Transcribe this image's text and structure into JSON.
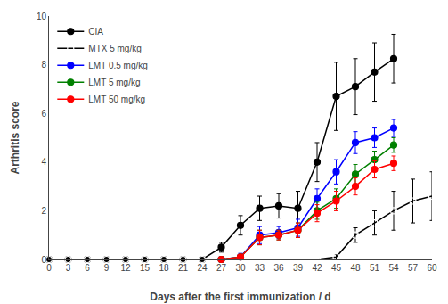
{
  "chart_data": {
    "type": "line",
    "xlabel": "Days after the first immunization / d",
    "ylabel": "Arthritis score",
    "xlim": [
      0,
      60
    ],
    "xticks": [
      0,
      3,
      6,
      9,
      12,
      15,
      18,
      21,
      24,
      27,
      30,
      33,
      36,
      39,
      42,
      45,
      48,
      51,
      54,
      57,
      60
    ],
    "ylim": [
      0,
      10
    ],
    "yticks": [
      0,
      2,
      4,
      6,
      8,
      10
    ],
    "grid": false,
    "legend": "upper left",
    "series": [
      {
        "name": "CIA",
        "color": "#000000",
        "marker": "circle",
        "line_style": "solid",
        "x": [
          0,
          3,
          6,
          9,
          12,
          15,
          18,
          21,
          24,
          27,
          30,
          33,
          36,
          39,
          42,
          45,
          48,
          51,
          54
        ],
        "values": [
          0,
          0,
          0,
          0,
          0,
          0,
          0,
          0,
          0,
          0.5,
          1.4,
          2.1,
          2.2,
          2.1,
          4.0,
          6.7,
          7.1,
          7.7,
          8.25
        ],
        "errors": [
          0,
          0,
          0,
          0,
          0,
          0,
          0,
          0,
          0,
          0.2,
          0.4,
          0.5,
          0.5,
          0.7,
          0.8,
          1.4,
          1.15,
          1.2,
          1.0
        ]
      },
      {
        "name": "MTX 5 mg/kg",
        "color": "#000000",
        "marker": "circle-open",
        "line_style": "solid",
        "x": [
          0,
          3,
          6,
          9,
          12,
          15,
          18,
          21,
          24,
          27,
          30,
          33,
          36,
          39,
          42,
          45,
          48,
          51,
          54,
          57,
          60
        ],
        "values": [
          0,
          0,
          0,
          0,
          0,
          0,
          0,
          0,
          0,
          0,
          0,
          0,
          0,
          0,
          0,
          0.1,
          1.0,
          1.5,
          2.0,
          2.4,
          2.6
        ],
        "errors": [
          0,
          0,
          0,
          0,
          0,
          0,
          0,
          0,
          0,
          0,
          0,
          0,
          0,
          0,
          0,
          0.1,
          0.3,
          0.5,
          0.8,
          0.9,
          1.0
        ]
      },
      {
        "name": "LMT 0.5 mg/kg",
        "color": "#0000FF",
        "marker": "circle",
        "line_style": "solid",
        "x": [
          27,
          30,
          33,
          36,
          39,
          42,
          45,
          48,
          51,
          54
        ],
        "values": [
          0,
          0.1,
          1.0,
          1.1,
          1.3,
          2.5,
          3.6,
          4.8,
          5.0,
          5.4
        ],
        "errors": [
          0,
          0.15,
          0.35,
          0.25,
          0.35,
          0.4,
          0.5,
          0.45,
          0.4,
          0.35
        ]
      },
      {
        "name": "LMT 5 mg/kg",
        "color": "#008000",
        "marker": "circle",
        "line_style": "solid",
        "x": [
          27,
          30,
          33,
          36,
          39,
          42,
          45,
          48,
          51,
          54
        ],
        "values": [
          0,
          0.1,
          0.9,
          1.0,
          1.2,
          2.0,
          2.5,
          3.5,
          4.1,
          4.7
        ],
        "errors": [
          0,
          0.1,
          0.3,
          0.2,
          0.3,
          0.35,
          0.4,
          0.4,
          0.35,
          0.3
        ]
      },
      {
        "name": "LMT 50 mg/kg",
        "color": "#FF0000",
        "marker": "circle",
        "line_style": "solid",
        "x": [
          27,
          30,
          33,
          36,
          39,
          42,
          45,
          48,
          51,
          54
        ],
        "values": [
          0,
          0.1,
          0.9,
          1.0,
          1.2,
          1.9,
          2.4,
          3.0,
          3.7,
          3.95
        ],
        "errors": [
          0,
          0.1,
          0.3,
          0.2,
          0.3,
          0.35,
          0.4,
          0.35,
          0.35,
          0.3
        ]
      }
    ]
  }
}
